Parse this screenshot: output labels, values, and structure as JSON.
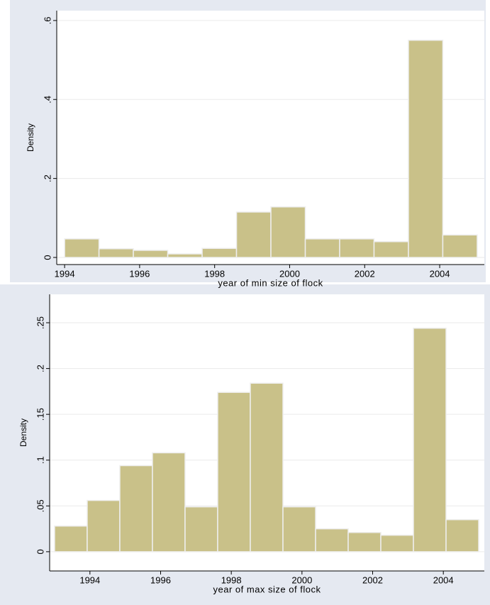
{
  "chart_data": [
    {
      "type": "histogram",
      "x_label": "year of min size of flock",
      "y_label": "Density",
      "bins": [
        1994,
        1994.917,
        1995.833,
        1996.75,
        1997.667,
        1998.583,
        1999.5,
        2000.417,
        2001.333,
        2002.25,
        2003.167,
        2004.083,
        2005
      ],
      "values": [
        0.047,
        0.022,
        0.018,
        0.009,
        0.023,
        0.115,
        0.128,
        0.047,
        0.047,
        0.04,
        0.55,
        0.057
      ],
      "color": "#c9c189",
      "xlim": [
        1993.79,
        2005.19
      ],
      "ylim": [
        -0.018,
        0.625
      ],
      "xticks": [
        1994,
        1996,
        1998,
        2000,
        2002,
        2004
      ],
      "yticks": [
        0,
        {
          "value": 0.2,
          "label": ".2"
        },
        {
          "value": 0.4,
          "label": ".4"
        },
        {
          "value": 0.6,
          "label": ".6"
        }
      ],
      "grid": true
    },
    {
      "type": "histogram",
      "x_label": "year of max size of flock",
      "y_label": "Density",
      "bins": [
        1993,
        1993.923,
        1994.846,
        1995.769,
        1996.692,
        1997.615,
        1998.538,
        1999.462,
        2000.385,
        2001.308,
        2002.231,
        2003.154,
        2004.077,
        2005
      ],
      "values": [
        0.028,
        0.056,
        0.094,
        0.108,
        0.049,
        0.174,
        0.184,
        0.049,
        0.025,
        0.021,
        0.018,
        0.244,
        0.035
      ],
      "color": "#c9c189",
      "xlim": [
        1992.86,
        2005.16
      ],
      "ylim": [
        -0.021,
        0.281
      ],
      "xticks": [
        1994,
        1996,
        1998,
        2000,
        2002,
        2004
      ],
      "yticks": [
        0,
        {
          "value": 0.05,
          "label": ".05"
        },
        {
          "value": 0.1,
          "label": ".1"
        },
        {
          "value": 0.15,
          "label": ".15"
        },
        {
          "value": 0.2,
          "label": ".2"
        },
        {
          "value": 0.25,
          "label": ".25"
        }
      ],
      "grid": true
    }
  ]
}
